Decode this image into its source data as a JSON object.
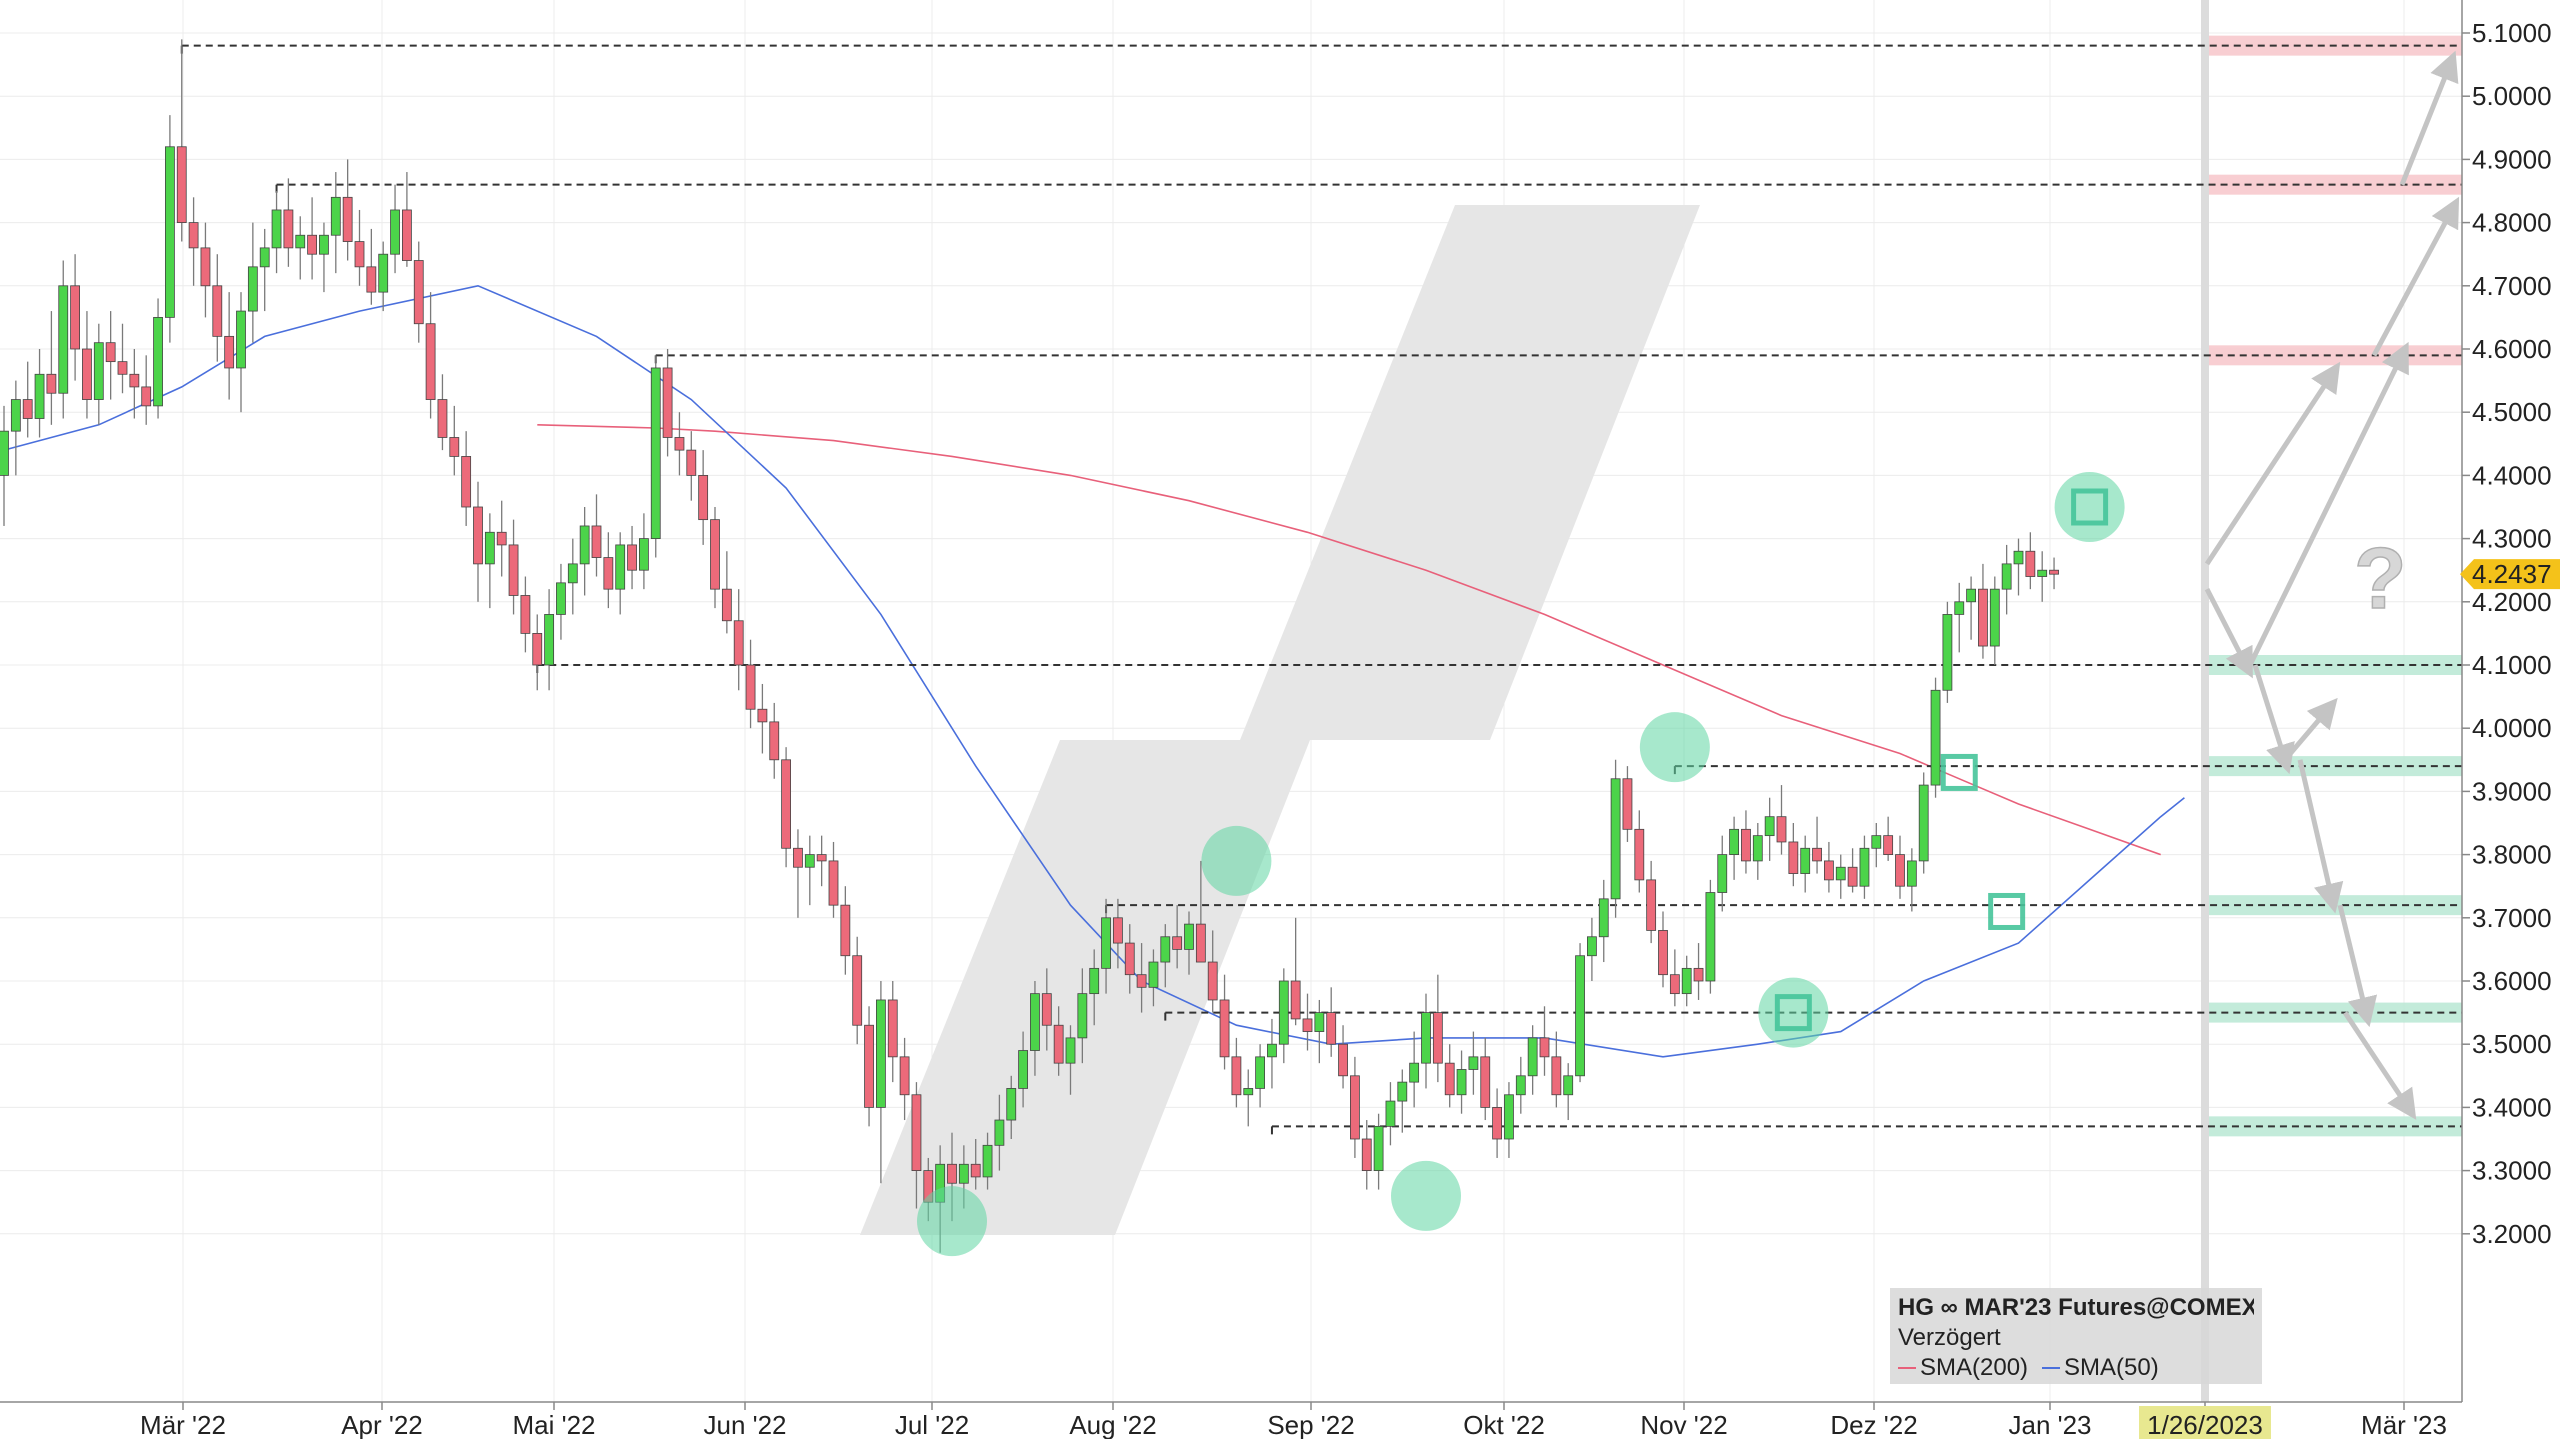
{
  "chart_data": {
    "type": "candlestick",
    "instrument": "HG ∞ MAR'23 Futures@COMEX",
    "status": "Verzögert",
    "last_price_label": "4.2437",
    "last_price": 4.2437,
    "current_date_label": "1/26/2023",
    "ylim": [
      3.1,
      5.13
    ],
    "y_ticks": [
      "3.2000",
      "3.3000",
      "3.4000",
      "3.5000",
      "3.6000",
      "3.7000",
      "3.8000",
      "3.9000",
      "4.0000",
      "4.1000",
      "4.2000",
      "4.3000",
      "4.4000",
      "4.5000",
      "4.6000",
      "4.7000",
      "4.8000",
      "4.9000",
      "5.0000",
      "5.1000"
    ],
    "x_ticks": [
      "Mär '22",
      "Apr '22",
      "Mai '22",
      "Jun '22",
      "Jul '22",
      "Aug '22",
      "Sep '22",
      "Okt '22",
      "Nov '22",
      "Dez '22",
      "Jan '23",
      "1/26/2023",
      "Mär '23"
    ],
    "series": [
      {
        "name": "SMA(200)",
        "color": "#e8607a"
      },
      {
        "name": "SMA(50)",
        "color": "#4a6fdc"
      }
    ],
    "candles": [
      [
        4.4,
        4.51,
        4.32,
        4.47
      ],
      [
        4.47,
        4.55,
        4.4,
        4.52
      ],
      [
        4.52,
        4.58,
        4.46,
        4.49
      ],
      [
        4.49,
        4.6,
        4.46,
        4.56
      ],
      [
        4.56,
        4.66,
        4.48,
        4.53
      ],
      [
        4.53,
        4.74,
        4.49,
        4.7
      ],
      [
        4.7,
        4.75,
        4.55,
        4.6
      ],
      [
        4.6,
        4.66,
        4.49,
        4.52
      ],
      [
        4.52,
        4.64,
        4.48,
        4.61
      ],
      [
        4.61,
        4.66,
        4.52,
        4.58
      ],
      [
        4.58,
        4.64,
        4.53,
        4.56
      ],
      [
        4.56,
        4.6,
        4.49,
        4.54
      ],
      [
        4.54,
        4.59,
        4.48,
        4.51
      ],
      [
        4.51,
        4.68,
        4.49,
        4.65
      ],
      [
        4.65,
        4.97,
        4.61,
        4.92
      ],
      [
        4.92,
        5.09,
        4.77,
        4.8
      ],
      [
        4.8,
        4.84,
        4.7,
        4.76
      ],
      [
        4.76,
        4.8,
        4.65,
        4.7
      ],
      [
        4.7,
        4.75,
        4.58,
        4.62
      ],
      [
        4.62,
        4.69,
        4.52,
        4.57
      ],
      [
        4.57,
        4.69,
        4.5,
        4.66
      ],
      [
        4.66,
        4.8,
        4.61,
        4.73
      ],
      [
        4.73,
        4.79,
        4.66,
        4.76
      ],
      [
        4.76,
        4.85,
        4.72,
        4.82
      ],
      [
        4.82,
        4.87,
        4.73,
        4.76
      ],
      [
        4.76,
        4.81,
        4.71,
        4.78
      ],
      [
        4.78,
        4.84,
        4.71,
        4.75
      ],
      [
        4.75,
        4.8,
        4.69,
        4.78
      ],
      [
        4.78,
        4.88,
        4.72,
        4.84
      ],
      [
        4.84,
        4.9,
        4.74,
        4.77
      ],
      [
        4.77,
        4.82,
        4.7,
        4.73
      ],
      [
        4.73,
        4.79,
        4.67,
        4.69
      ],
      [
        4.69,
        4.77,
        4.66,
        4.75
      ],
      [
        4.75,
        4.86,
        4.72,
        4.82
      ],
      [
        4.82,
        4.88,
        4.73,
        4.74
      ],
      [
        4.74,
        4.77,
        4.61,
        4.64
      ],
      [
        4.64,
        4.69,
        4.49,
        4.52
      ],
      [
        4.52,
        4.56,
        4.44,
        4.46
      ],
      [
        4.46,
        4.51,
        4.4,
        4.43
      ],
      [
        4.43,
        4.47,
        4.32,
        4.35
      ],
      [
        4.35,
        4.39,
        4.2,
        4.26
      ],
      [
        4.26,
        4.34,
        4.19,
        4.31
      ],
      [
        4.31,
        4.36,
        4.24,
        4.29
      ],
      [
        4.29,
        4.33,
        4.18,
        4.21
      ],
      [
        4.21,
        4.24,
        4.12,
        4.15
      ],
      [
        4.15,
        4.18,
        4.06,
        4.1
      ],
      [
        4.1,
        4.22,
        4.06,
        4.18
      ],
      [
        4.18,
        4.26,
        4.14,
        4.23
      ],
      [
        4.23,
        4.3,
        4.18,
        4.26
      ],
      [
        4.26,
        4.35,
        4.21,
        4.32
      ],
      [
        4.32,
        4.37,
        4.24,
        4.27
      ],
      [
        4.27,
        4.31,
        4.19,
        4.22
      ],
      [
        4.22,
        4.31,
        4.18,
        4.29
      ],
      [
        4.29,
        4.32,
        4.22,
        4.25
      ],
      [
        4.25,
        4.34,
        4.22,
        4.3
      ],
      [
        4.3,
        4.59,
        4.27,
        4.57
      ],
      [
        4.57,
        4.6,
        4.43,
        4.46
      ],
      [
        4.46,
        4.5,
        4.4,
        4.44
      ],
      [
        4.44,
        4.47,
        4.36,
        4.4
      ],
      [
        4.4,
        4.44,
        4.29,
        4.33
      ],
      [
        4.33,
        4.35,
        4.19,
        4.22
      ],
      [
        4.22,
        4.28,
        4.15,
        4.17
      ],
      [
        4.17,
        4.22,
        4.06,
        4.1
      ],
      [
        4.1,
        4.14,
        4.0,
        4.03
      ],
      [
        4.03,
        4.07,
        3.96,
        4.01
      ],
      [
        4.01,
        4.04,
        3.92,
        3.95
      ],
      [
        3.95,
        3.97,
        3.78,
        3.81
      ],
      [
        3.81,
        3.84,
        3.7,
        3.78
      ],
      [
        3.78,
        3.83,
        3.72,
        3.8
      ],
      [
        3.8,
        3.83,
        3.75,
        3.79
      ],
      [
        3.79,
        3.82,
        3.7,
        3.72
      ],
      [
        3.72,
        3.75,
        3.61,
        3.64
      ],
      [
        3.64,
        3.67,
        3.5,
        3.53
      ],
      [
        3.53,
        3.56,
        3.37,
        3.4
      ],
      [
        3.4,
        3.6,
        3.28,
        3.57
      ],
      [
        3.57,
        3.6,
        3.44,
        3.48
      ],
      [
        3.48,
        3.51,
        3.38,
        3.42
      ],
      [
        3.42,
        3.44,
        3.24,
        3.3
      ],
      [
        3.3,
        3.32,
        3.22,
        3.25
      ],
      [
        3.25,
        3.34,
        3.17,
        3.31
      ],
      [
        3.31,
        3.36,
        3.22,
        3.28
      ],
      [
        3.28,
        3.34,
        3.24,
        3.31
      ],
      [
        3.31,
        3.35,
        3.27,
        3.29
      ],
      [
        3.29,
        3.36,
        3.27,
        3.34
      ],
      [
        3.34,
        3.42,
        3.3,
        3.38
      ],
      [
        3.38,
        3.45,
        3.35,
        3.43
      ],
      [
        3.43,
        3.52,
        3.4,
        3.49
      ],
      [
        3.49,
        3.6,
        3.45,
        3.58
      ],
      [
        3.58,
        3.62,
        3.49,
        3.53
      ],
      [
        3.53,
        3.56,
        3.45,
        3.47
      ],
      [
        3.47,
        3.53,
        3.42,
        3.51
      ],
      [
        3.51,
        3.62,
        3.47,
        3.58
      ],
      [
        3.58,
        3.65,
        3.53,
        3.62
      ],
      [
        3.62,
        3.73,
        3.58,
        3.7
      ],
      [
        3.7,
        3.73,
        3.62,
        3.66
      ],
      [
        3.66,
        3.69,
        3.58,
        3.61
      ],
      [
        3.61,
        3.66,
        3.55,
        3.59
      ],
      [
        3.59,
        3.65,
        3.56,
        3.63
      ],
      [
        3.63,
        3.69,
        3.59,
        3.67
      ],
      [
        3.67,
        3.72,
        3.62,
        3.65
      ],
      [
        3.65,
        3.71,
        3.61,
        3.69
      ],
      [
        3.69,
        3.79,
        3.64,
        3.63
      ],
      [
        3.63,
        3.68,
        3.55,
        3.57
      ],
      [
        3.57,
        3.61,
        3.46,
        3.48
      ],
      [
        3.48,
        3.51,
        3.4,
        3.42
      ],
      [
        3.42,
        3.46,
        3.37,
        3.43
      ],
      [
        3.43,
        3.5,
        3.4,
        3.48
      ],
      [
        3.48,
        3.54,
        3.43,
        3.5
      ],
      [
        3.5,
        3.62,
        3.47,
        3.6
      ],
      [
        3.6,
        3.7,
        3.53,
        3.54
      ],
      [
        3.54,
        3.58,
        3.49,
        3.52
      ],
      [
        3.52,
        3.57,
        3.47,
        3.55
      ],
      [
        3.55,
        3.59,
        3.48,
        3.5
      ],
      [
        3.5,
        3.53,
        3.43,
        3.45
      ],
      [
        3.45,
        3.48,
        3.32,
        3.35
      ],
      [
        3.35,
        3.38,
        3.27,
        3.3
      ],
      [
        3.3,
        3.39,
        3.27,
        3.37
      ],
      [
        3.37,
        3.44,
        3.34,
        3.41
      ],
      [
        3.41,
        3.46,
        3.36,
        3.44
      ],
      [
        3.44,
        3.52,
        3.4,
        3.47
      ],
      [
        3.47,
        3.58,
        3.43,
        3.55
      ],
      [
        3.55,
        3.61,
        3.44,
        3.47
      ],
      [
        3.47,
        3.5,
        3.4,
        3.42
      ],
      [
        3.42,
        3.49,
        3.39,
        3.46
      ],
      [
        3.46,
        3.52,
        3.42,
        3.48
      ],
      [
        3.48,
        3.51,
        3.38,
        3.4
      ],
      [
        3.4,
        3.43,
        3.32,
        3.35
      ],
      [
        3.35,
        3.44,
        3.32,
        3.42
      ],
      [
        3.42,
        3.48,
        3.39,
        3.45
      ],
      [
        3.45,
        3.53,
        3.42,
        3.51
      ],
      [
        3.51,
        3.56,
        3.45,
        3.48
      ],
      [
        3.48,
        3.52,
        3.4,
        3.42
      ],
      [
        3.42,
        3.47,
        3.38,
        3.45
      ],
      [
        3.45,
        3.66,
        3.44,
        3.64
      ],
      [
        3.64,
        3.7,
        3.6,
        3.67
      ],
      [
        3.67,
        3.76,
        3.63,
        3.73
      ],
      [
        3.73,
        3.95,
        3.7,
        3.92
      ],
      [
        3.92,
        3.94,
        3.82,
        3.84
      ],
      [
        3.84,
        3.87,
        3.74,
        3.76
      ],
      [
        3.76,
        3.79,
        3.66,
        3.68
      ],
      [
        3.68,
        3.71,
        3.59,
        3.61
      ],
      [
        3.61,
        3.65,
        3.56,
        3.58
      ],
      [
        3.58,
        3.64,
        3.56,
        3.62
      ],
      [
        3.62,
        3.66,
        3.57,
        3.6
      ],
      [
        3.6,
        3.76,
        3.58,
        3.74
      ],
      [
        3.74,
        3.83,
        3.71,
        3.8
      ],
      [
        3.8,
        3.86,
        3.76,
        3.84
      ],
      [
        3.84,
        3.87,
        3.77,
        3.79
      ],
      [
        3.79,
        3.85,
        3.76,
        3.83
      ],
      [
        3.83,
        3.89,
        3.79,
        3.86
      ],
      [
        3.86,
        3.91,
        3.8,
        3.82
      ],
      [
        3.82,
        3.85,
        3.75,
        3.77
      ],
      [
        3.77,
        3.83,
        3.74,
        3.81
      ],
      [
        3.81,
        3.86,
        3.77,
        3.79
      ],
      [
        3.79,
        3.82,
        3.74,
        3.76
      ],
      [
        3.76,
        3.8,
        3.73,
        3.78
      ],
      [
        3.78,
        3.81,
        3.74,
        3.75
      ],
      [
        3.75,
        3.83,
        3.73,
        3.81
      ],
      [
        3.81,
        3.85,
        3.78,
        3.83
      ],
      [
        3.83,
        3.86,
        3.79,
        3.8
      ],
      [
        3.8,
        3.83,
        3.73,
        3.75
      ],
      [
        3.75,
        3.81,
        3.71,
        3.79
      ],
      [
        3.79,
        3.93,
        3.77,
        3.91
      ],
      [
        3.91,
        4.08,
        3.89,
        4.06
      ],
      [
        4.06,
        4.2,
        4.04,
        4.18
      ],
      [
        4.18,
        4.23,
        4.12,
        4.2
      ],
      [
        4.2,
        4.24,
        4.14,
        4.22
      ],
      [
        4.22,
        4.26,
        4.11,
        4.13
      ],
      [
        4.13,
        4.24,
        4.1,
        4.22
      ],
      [
        4.22,
        4.29,
        4.18,
        4.26
      ],
      [
        4.26,
        4.3,
        4.21,
        4.28
      ],
      [
        4.28,
        4.31,
        4.22,
        4.24
      ],
      [
        4.24,
        4.28,
        4.2,
        4.25
      ],
      [
        4.25,
        4.27,
        4.22,
        4.2437
      ]
    ],
    "sma200": [
      [
        45,
        4.48
      ],
      [
        55,
        4.475
      ],
      [
        60,
        4.47
      ],
      [
        70,
        4.455
      ],
      [
        80,
        4.43
      ],
      [
        90,
        4.4
      ],
      [
        100,
        4.36
      ],
      [
        110,
        4.31
      ],
      [
        120,
        4.25
      ],
      [
        130,
        4.18
      ],
      [
        140,
        4.1
      ],
      [
        150,
        4.02
      ],
      [
        160,
        3.96
      ],
      [
        165,
        3.92
      ],
      [
        170,
        3.88
      ],
      [
        176,
        3.84
      ],
      [
        182,
        3.8
      ]
    ],
    "sma50": [
      [
        0,
        4.44
      ],
      [
        8,
        4.48
      ],
      [
        15,
        4.54
      ],
      [
        22,
        4.62
      ],
      [
        30,
        4.66
      ],
      [
        40,
        4.7
      ],
      [
        50,
        4.62
      ],
      [
        58,
        4.52
      ],
      [
        66,
        4.38
      ],
      [
        74,
        4.18
      ],
      [
        82,
        3.94
      ],
      [
        90,
        3.72
      ],
      [
        96,
        3.6
      ],
      [
        104,
        3.53
      ],
      [
        112,
        3.5
      ],
      [
        120,
        3.51
      ],
      [
        130,
        3.51
      ],
      [
        140,
        3.48
      ],
      [
        148,
        3.5
      ],
      [
        155,
        3.52
      ],
      [
        162,
        3.6
      ],
      [
        170,
        3.66
      ],
      [
        176,
        3.76
      ],
      [
        182,
        3.86
      ],
      [
        184,
        3.89
      ]
    ],
    "resistance_levels": [
      5.08,
      4.86,
      4.59
    ],
    "support_levels": [
      4.1,
      3.94,
      3.72,
      3.55,
      3.37
    ],
    "horizontal_lines": [
      5.08,
      4.86,
      4.59,
      4.1,
      3.94,
      3.72,
      3.55,
      3.37
    ],
    "highlight_circles": [
      [
        80,
        3.22
      ],
      [
        104,
        3.79
      ],
      [
        120,
        3.26
      ],
      [
        141,
        3.97
      ],
      [
        151,
        3.55
      ],
      [
        176,
        4.35
      ]
    ],
    "highlight_squares": [
      [
        151,
        3.55
      ],
      [
        165,
        3.93
      ],
      [
        169,
        3.71
      ],
      [
        176,
        4.35
      ]
    ],
    "scenario_arrows": [
      [
        [
          4.26,
          4.56
        ],
        [
          4.1,
          4.59
        ],
        [
          4.59,
          4.82
        ],
        [
          4.86,
          5.05
        ]
      ],
      [
        [
          4.22,
          4.1
        ],
        [
          4.1,
          3.95
        ],
        [
          3.95,
          4.03
        ],
        [
          3.95,
          3.73
        ],
        [
          3.72,
          3.55
        ],
        [
          3.55,
          3.4
        ]
      ]
    ],
    "question_mark": "?"
  }
}
